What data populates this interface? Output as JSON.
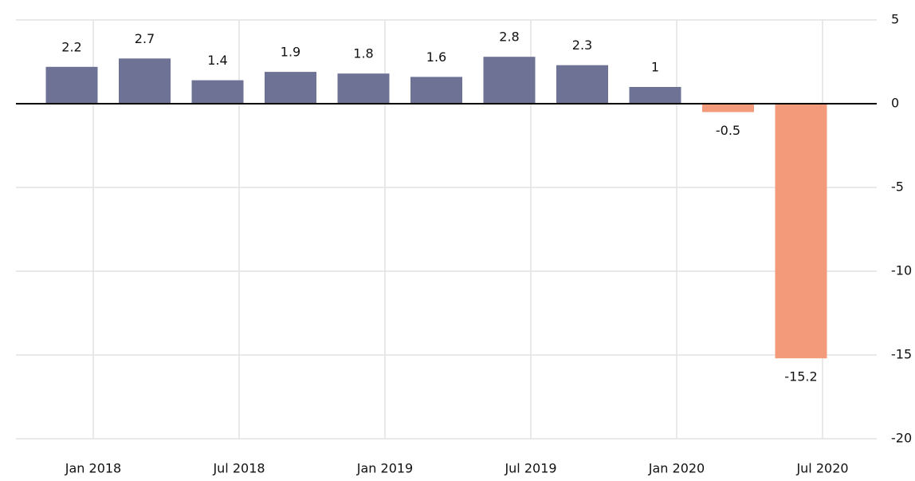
{
  "chart_data": {
    "type": "bar",
    "categories": [
      null,
      null,
      null,
      null,
      null,
      null,
      null,
      null,
      null,
      null,
      null
    ],
    "values": [
      2.2,
      2.7,
      1.4,
      1.9,
      1.8,
      1.6,
      2.8,
      2.3,
      1,
      -0.5,
      -15.2
    ],
    "color": "#6e7396",
    "negative_color": "#f29a7a",
    "x_labels": [
      "Jan 2018",
      "Jul 2018",
      "Jan 2019",
      "Jul 2019",
      "Jan 2020",
      "Jul 2020"
    ],
    "ylim": [
      -20,
      5
    ],
    "yticks": [
      -20,
      -15,
      -10,
      -5,
      0,
      5
    ],
    "grid": true,
    "y_axis_side": "right"
  }
}
